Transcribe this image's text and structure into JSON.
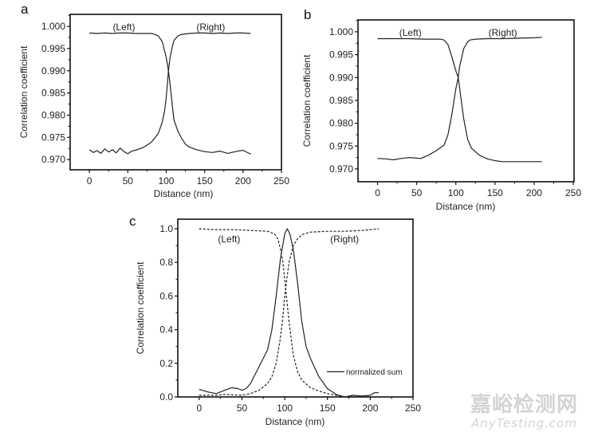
{
  "chart_data": [
    {
      "panel": "a",
      "type": "line",
      "xlabel": "Distance (nm)",
      "ylabel": "Correlation coefficient",
      "xlim": [
        -25,
        250
      ],
      "ylim": [
        0.9677,
        1.0027
      ],
      "xticks": [
        0,
        50,
        100,
        150,
        200,
        250
      ],
      "xtick_labels": [
        "0",
        "50",
        "100",
        "150",
        "200",
        "250"
      ],
      "yticks": [
        0.97,
        0.975,
        0.98,
        0.985,
        0.99,
        0.995,
        1.0
      ],
      "ytick_labels": [
        "0.970",
        "0.975",
        "0.980",
        "0.985",
        "0.990",
        "0.995",
        "1.000"
      ],
      "grid": false,
      "annotations": [
        {
          "text": "(Left)",
          "x": 45,
          "y": 0.9995
        },
        {
          "text": "(Right)",
          "x": 158,
          "y": 0.9995
        }
      ],
      "series": [
        {
          "style": "solid",
          "x": [
            0,
            10,
            20,
            30,
            40,
            50,
            60,
            70,
            80,
            85,
            90,
            95,
            100,
            103,
            105,
            108,
            110,
            115,
            120,
            125,
            130,
            140,
            150,
            160,
            170,
            180,
            190,
            200,
            210
          ],
          "y": [
            0.9985,
            0.9984,
            0.9985,
            0.9984,
            0.9985,
            0.9985,
            0.9984,
            0.9984,
            0.9984,
            0.9982,
            0.9978,
            0.9965,
            0.993,
            0.99,
            0.987,
            0.982,
            0.979,
            0.9765,
            0.9748,
            0.9735,
            0.9728,
            0.9722,
            0.9718,
            0.9716,
            0.9719,
            0.9714,
            0.9718,
            0.9721,
            0.9712
          ]
        },
        {
          "style": "solid",
          "x": [
            0,
            5,
            10,
            15,
            20,
            25,
            30,
            35,
            40,
            45,
            50,
            55,
            60,
            70,
            80,
            85,
            90,
            95,
            98,
            100,
            103,
            105,
            108,
            110,
            115,
            120,
            130,
            140,
            150,
            160,
            170,
            180,
            190,
            200,
            210
          ],
          "y": [
            0.9722,
            0.9716,
            0.972,
            0.9714,
            0.9724,
            0.9717,
            0.9722,
            0.9715,
            0.9726,
            0.9718,
            0.9713,
            0.9719,
            0.9721,
            0.9727,
            0.9738,
            0.9748,
            0.976,
            0.9785,
            0.981,
            0.984,
            0.99,
            0.993,
            0.9955,
            0.9968,
            0.9978,
            0.9982,
            0.9984,
            0.9985,
            0.9985,
            0.9984,
            0.9985,
            0.9984,
            0.9985,
            0.9985,
            0.9984
          ]
        }
      ]
    },
    {
      "panel": "b",
      "type": "line",
      "xlabel": "Distance (nm)",
      "ylabel": "Correlation coefficient",
      "xlim": [
        -25,
        251
      ],
      "ylim": [
        0.9672,
        1.0026
      ],
      "xticks": [
        0,
        50,
        100,
        150,
        200,
        250
      ],
      "xtick_labels": [
        "0",
        "50",
        "100",
        "150",
        "200",
        "250"
      ],
      "yticks": [
        0.97,
        0.975,
        0.98,
        0.985,
        0.99,
        0.995,
        1.0
      ],
      "ytick_labels": [
        "0.970",
        "0.975",
        "0.980",
        "0.985",
        "0.990",
        "0.995",
        "1.000"
      ],
      "grid": false,
      "annotations": [
        {
          "text": "(Left)",
          "x": 42,
          "y": 0.9995
        },
        {
          "text": "(Right)",
          "x": 160,
          "y": 0.9995
        }
      ],
      "series": [
        {
          "style": "solid",
          "x": [
            0,
            20,
            40,
            60,
            80,
            85,
            90,
            95,
            100,
            103,
            105,
            110,
            115,
            120,
            130,
            140,
            150,
            160,
            180,
            200,
            210
          ],
          "y": [
            0.9985,
            0.9985,
            0.9985,
            0.9984,
            0.9984,
            0.9982,
            0.9972,
            0.9945,
            0.9915,
            0.99,
            0.9875,
            0.981,
            0.9765,
            0.9745,
            0.973,
            0.9722,
            0.9718,
            0.9716,
            0.9716,
            0.9716,
            0.9716
          ]
        },
        {
          "style": "solid",
          "x": [
            0,
            10,
            20,
            30,
            40,
            55,
            65,
            75,
            85,
            90,
            95,
            100,
            103,
            105,
            110,
            115,
            118,
            125,
            140,
            160,
            180,
            200,
            210
          ],
          "y": [
            0.9723,
            0.9722,
            0.972,
            0.9723,
            0.9725,
            0.9723,
            0.973,
            0.974,
            0.9752,
            0.9775,
            0.982,
            0.9875,
            0.99,
            0.9925,
            0.9963,
            0.9978,
            0.9982,
            0.9984,
            0.9985,
            0.9985,
            0.9986,
            0.9987,
            0.9988
          ]
        }
      ]
    },
    {
      "panel": "c",
      "type": "line",
      "xlabel": "Distance (nm)",
      "ylabel": "Correlation coefficient",
      "xlim": [
        -25,
        250
      ],
      "ylim": [
        0,
        1.057
      ],
      "xticks": [
        0,
        50,
        100,
        150,
        200,
        250
      ],
      "xtick_labels": [
        "0",
        "50",
        "100",
        "150",
        "200",
        "250"
      ],
      "yticks": [
        0,
        0.2,
        0.4,
        0.6,
        0.8,
        1.0
      ],
      "ytick_labels": [
        "0.0",
        "0.2",
        "0.4",
        "0.6",
        "0.8",
        "1.0"
      ],
      "grid": false,
      "legend": {
        "position": "bottom-right",
        "entries": [
          "normalized sum"
        ]
      },
      "annotations": [
        {
          "text": "(Left)",
          "x": 35,
          "y": 0.93
        },
        {
          "text": "(Right)",
          "x": 170,
          "y": 0.93
        }
      ],
      "series": [
        {
          "style": "dashed",
          "x": [
            0,
            20,
            40,
            60,
            80,
            88,
            92,
            95,
            98,
            100,
            103,
            105,
            108,
            110,
            115,
            120,
            130,
            140,
            150,
            160,
            170,
            190,
            210
          ],
          "y": [
            1.0,
            0.995,
            0.995,
            0.99,
            0.985,
            0.97,
            0.94,
            0.88,
            0.8,
            0.7,
            0.55,
            0.45,
            0.33,
            0.25,
            0.15,
            0.1,
            0.055,
            0.035,
            0.02,
            0.01,
            0.0,
            0.0,
            0.0
          ]
        },
        {
          "style": "dashed",
          "x": [
            0,
            20,
            30,
            40,
            50,
            60,
            70,
            80,
            85,
            90,
            95,
            98,
            100,
            103,
            105,
            108,
            110,
            115,
            120,
            130,
            150,
            170,
            190,
            200,
            210
          ],
          "y": [
            0.01,
            0.01,
            0.015,
            0.012,
            0.01,
            0.02,
            0.04,
            0.08,
            0.12,
            0.2,
            0.35,
            0.48,
            0.6,
            0.72,
            0.8,
            0.86,
            0.9,
            0.94,
            0.965,
            0.98,
            0.985,
            0.985,
            0.99,
            0.995,
            1.0
          ]
        },
        {
          "style": "solid",
          "name": "normalized sum",
          "x": [
            0,
            10,
            20,
            30,
            38,
            45,
            50,
            55,
            60,
            70,
            80,
            85,
            90,
            95,
            100,
            103,
            106,
            110,
            115,
            120,
            125,
            130,
            140,
            150,
            160,
            170,
            180,
            190,
            200,
            205,
            210
          ],
          "y": [
            0.045,
            0.03,
            0.02,
            0.04,
            0.055,
            0.05,
            0.04,
            0.05,
            0.08,
            0.18,
            0.28,
            0.4,
            0.6,
            0.82,
            0.97,
            1.0,
            0.97,
            0.88,
            0.68,
            0.45,
            0.3,
            0.23,
            0.12,
            0.05,
            0.015,
            0.0,
            0.01,
            0.005,
            0.01,
            0.025,
            0.025
          ]
        }
      ]
    }
  ],
  "watermark": {
    "cn": "嘉峪检测网",
    "en": "AnyTesting.com"
  }
}
